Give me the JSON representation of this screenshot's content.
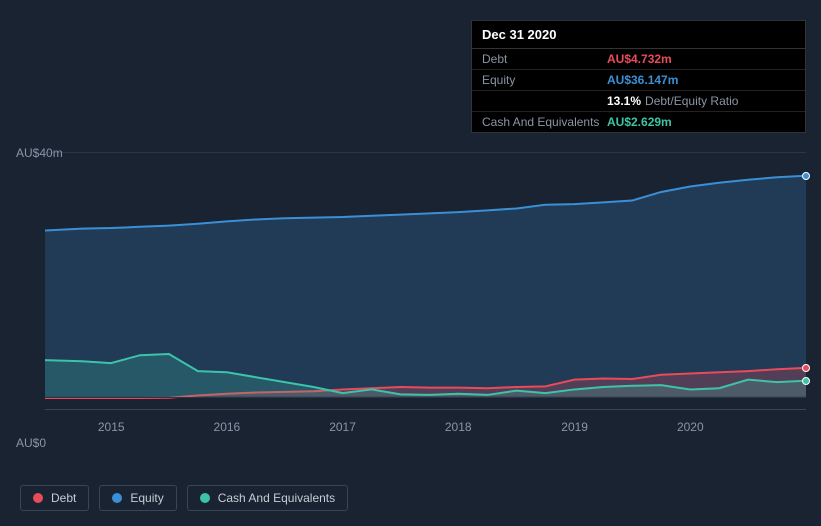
{
  "tooltip": {
    "date": "Dec 31 2020",
    "rows": [
      {
        "label": "Debt",
        "value": "AU$4.732m",
        "class": "debt"
      },
      {
        "label": "Equity",
        "value": "AU$36.147m",
        "class": "equity"
      },
      {
        "label": "",
        "value": "13.1%",
        "suffix": "Debt/Equity Ratio",
        "class": "ratio"
      },
      {
        "label": "Cash And Equivalents",
        "value": "AU$2.629m",
        "class": "cash"
      }
    ]
  },
  "chart": {
    "type": "area",
    "background_color": "#1a2332",
    "y_axis": {
      "labels": [
        {
          "text": "AU$40m",
          "value": 40
        },
        {
          "text": "AU$0",
          "value": 0
        }
      ],
      "min": -2,
      "max": 42
    },
    "x_axis": {
      "ticks": [
        {
          "label": "2015",
          "pos": 0.087
        },
        {
          "label": "2016",
          "pos": 0.239
        },
        {
          "label": "2017",
          "pos": 0.391
        },
        {
          "label": "2018",
          "pos": 0.543
        },
        {
          "label": "2019",
          "pos": 0.696
        },
        {
          "label": "2020",
          "pos": 0.848
        }
      ],
      "t_min": 2014.43,
      "t_max": 2021.0
    },
    "series": {
      "equity": {
        "color": "#3a8fd6",
        "fill": "rgba(58,143,214,0.22)",
        "stroke_width": 2,
        "points": [
          [
            2014.43,
            27.2
          ],
          [
            2014.75,
            27.5
          ],
          [
            2015.0,
            27.6
          ],
          [
            2015.25,
            27.8
          ],
          [
            2015.5,
            28.0
          ],
          [
            2015.75,
            28.3
          ],
          [
            2016.0,
            28.7
          ],
          [
            2016.25,
            29.0
          ],
          [
            2016.5,
            29.2
          ],
          [
            2016.75,
            29.3
          ],
          [
            2017.0,
            29.4
          ],
          [
            2017.25,
            29.6
          ],
          [
            2017.5,
            29.8
          ],
          [
            2017.75,
            30.0
          ],
          [
            2018.0,
            30.2
          ],
          [
            2018.25,
            30.5
          ],
          [
            2018.5,
            30.8
          ],
          [
            2018.75,
            31.4
          ],
          [
            2019.0,
            31.5
          ],
          [
            2019.25,
            31.8
          ],
          [
            2019.5,
            32.1
          ],
          [
            2019.75,
            33.5
          ],
          [
            2020.0,
            34.4
          ],
          [
            2020.25,
            35.0
          ],
          [
            2020.5,
            35.5
          ],
          [
            2020.75,
            35.9
          ],
          [
            2021.0,
            36.15
          ]
        ]
      },
      "cash": {
        "color": "#3dc4a8",
        "fill": "rgba(61,196,168,0.22)",
        "stroke_width": 2,
        "points": [
          [
            2014.43,
            6.0
          ],
          [
            2014.75,
            5.8
          ],
          [
            2015.0,
            5.5
          ],
          [
            2015.25,
            6.8
          ],
          [
            2015.5,
            7.0
          ],
          [
            2015.75,
            4.2
          ],
          [
            2016.0,
            4.0
          ],
          [
            2016.25,
            3.2
          ],
          [
            2016.5,
            2.4
          ],
          [
            2016.75,
            1.6
          ],
          [
            2017.0,
            0.6
          ],
          [
            2017.25,
            1.2
          ],
          [
            2017.5,
            0.4
          ],
          [
            2017.75,
            0.3
          ],
          [
            2018.0,
            0.5
          ],
          [
            2018.25,
            0.3
          ],
          [
            2018.5,
            1.0
          ],
          [
            2018.75,
            0.6
          ],
          [
            2019.0,
            1.2
          ],
          [
            2019.25,
            1.6
          ],
          [
            2019.5,
            1.8
          ],
          [
            2019.75,
            1.9
          ],
          [
            2020.0,
            1.2
          ],
          [
            2020.25,
            1.4
          ],
          [
            2020.5,
            2.8
          ],
          [
            2020.75,
            2.4
          ],
          [
            2021.0,
            2.63
          ]
        ]
      },
      "debt": {
        "color": "#e84b5a",
        "fill": "rgba(232,75,90,0.25)",
        "stroke_width": 2,
        "points": [
          [
            2014.43,
            -0.2
          ],
          [
            2014.75,
            -0.2
          ],
          [
            2015.0,
            -0.2
          ],
          [
            2015.25,
            -0.2
          ],
          [
            2015.5,
            -0.15
          ],
          [
            2015.75,
            0.2
          ],
          [
            2016.0,
            0.5
          ],
          [
            2016.25,
            0.7
          ],
          [
            2016.5,
            0.8
          ],
          [
            2016.75,
            0.9
          ],
          [
            2017.0,
            1.2
          ],
          [
            2017.25,
            1.4
          ],
          [
            2017.5,
            1.6
          ],
          [
            2017.75,
            1.5
          ],
          [
            2018.0,
            1.5
          ],
          [
            2018.25,
            1.4
          ],
          [
            2018.5,
            1.6
          ],
          [
            2018.75,
            1.7
          ],
          [
            2019.0,
            2.8
          ],
          [
            2019.25,
            3.0
          ],
          [
            2019.5,
            2.9
          ],
          [
            2019.75,
            3.6
          ],
          [
            2020.0,
            3.8
          ],
          [
            2020.25,
            4.0
          ],
          [
            2020.5,
            4.2
          ],
          [
            2020.75,
            4.5
          ],
          [
            2021.0,
            4.73
          ]
        ]
      }
    },
    "end_markers": [
      {
        "series": "equity",
        "color": "#3a8fd6"
      },
      {
        "series": "debt",
        "color": "#e84b5a"
      },
      {
        "series": "cash",
        "color": "#3dc4a8"
      }
    ]
  },
  "legend": {
    "items": [
      {
        "name": "Debt",
        "color": "#e84b5a"
      },
      {
        "name": "Equity",
        "color": "#3a8fd6"
      },
      {
        "name": "Cash And Equivalents",
        "color": "#3dc4a8"
      }
    ]
  }
}
